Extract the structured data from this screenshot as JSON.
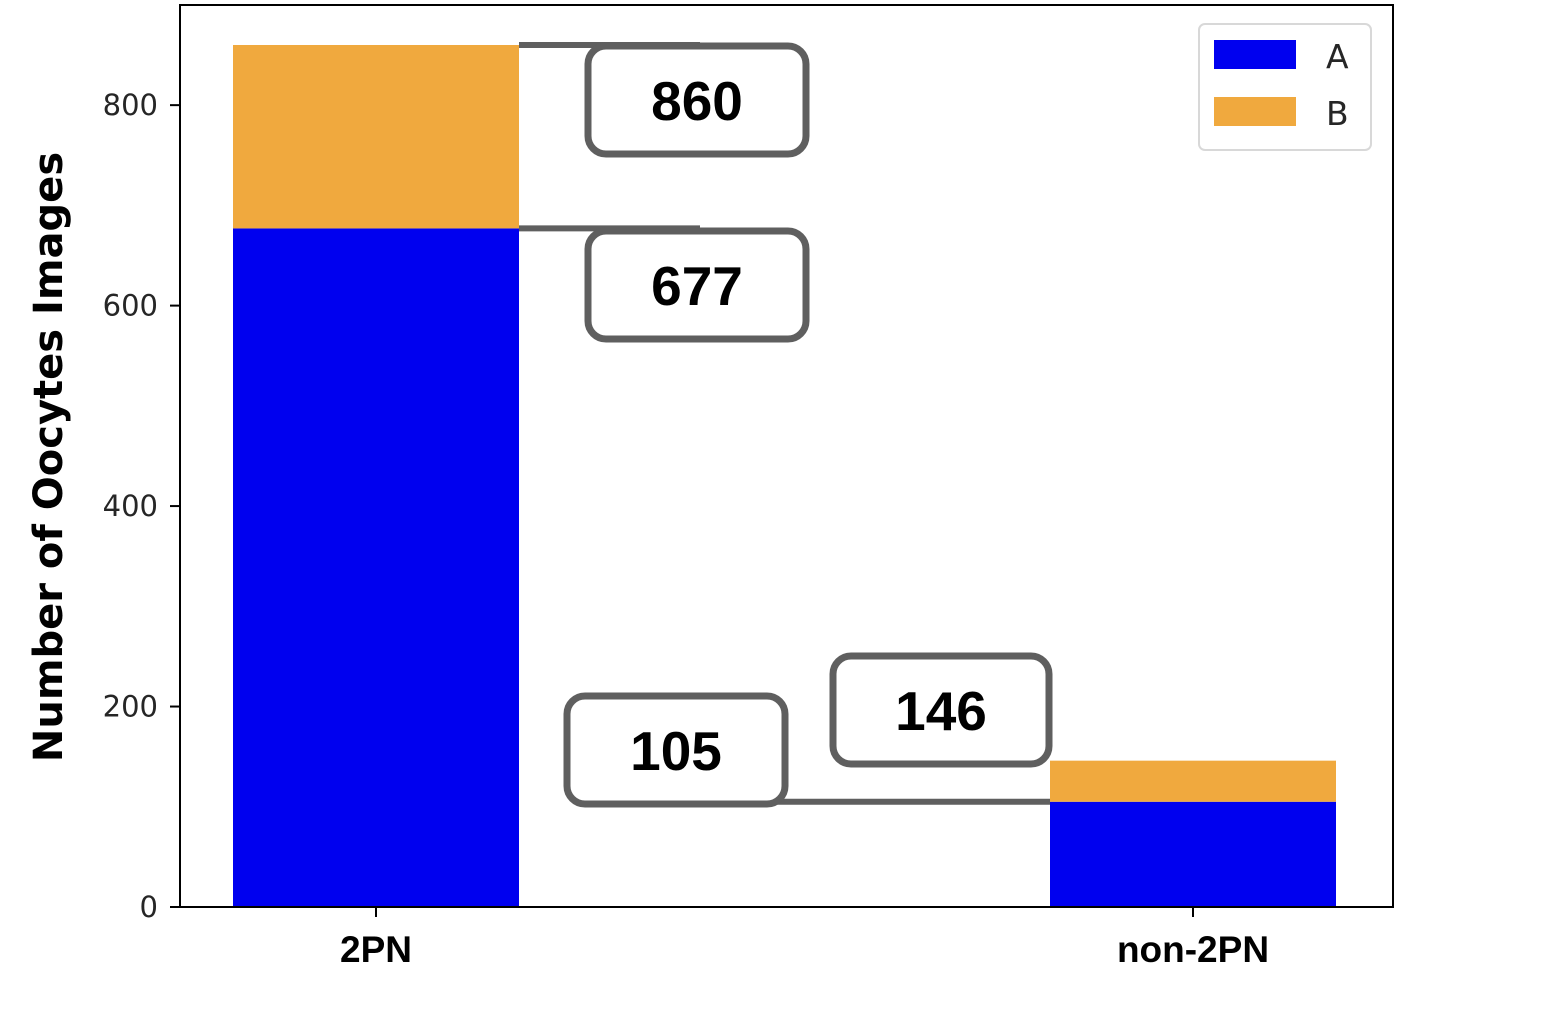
{
  "chart_data": {
    "type": "bar",
    "stacked": true,
    "categories": [
      "2PN",
      "non-2PN"
    ],
    "series": [
      {
        "name": "A",
        "values": [
          677,
          105
        ],
        "color": "#0000ef"
      },
      {
        "name": "B",
        "values": [
          183,
          41
        ],
        "color": "#f0a93e"
      }
    ],
    "totals": [
      860,
      146
    ],
    "ylabel": "Number of Oocytes Images",
    "xlabel": "",
    "ylim": [
      0,
      860
    ],
    "yticks": [
      0,
      200,
      400,
      600,
      800
    ],
    "grid": false,
    "legend_position": "top-right",
    "annotations": [
      "860",
      "677",
      "146",
      "105"
    ]
  }
}
